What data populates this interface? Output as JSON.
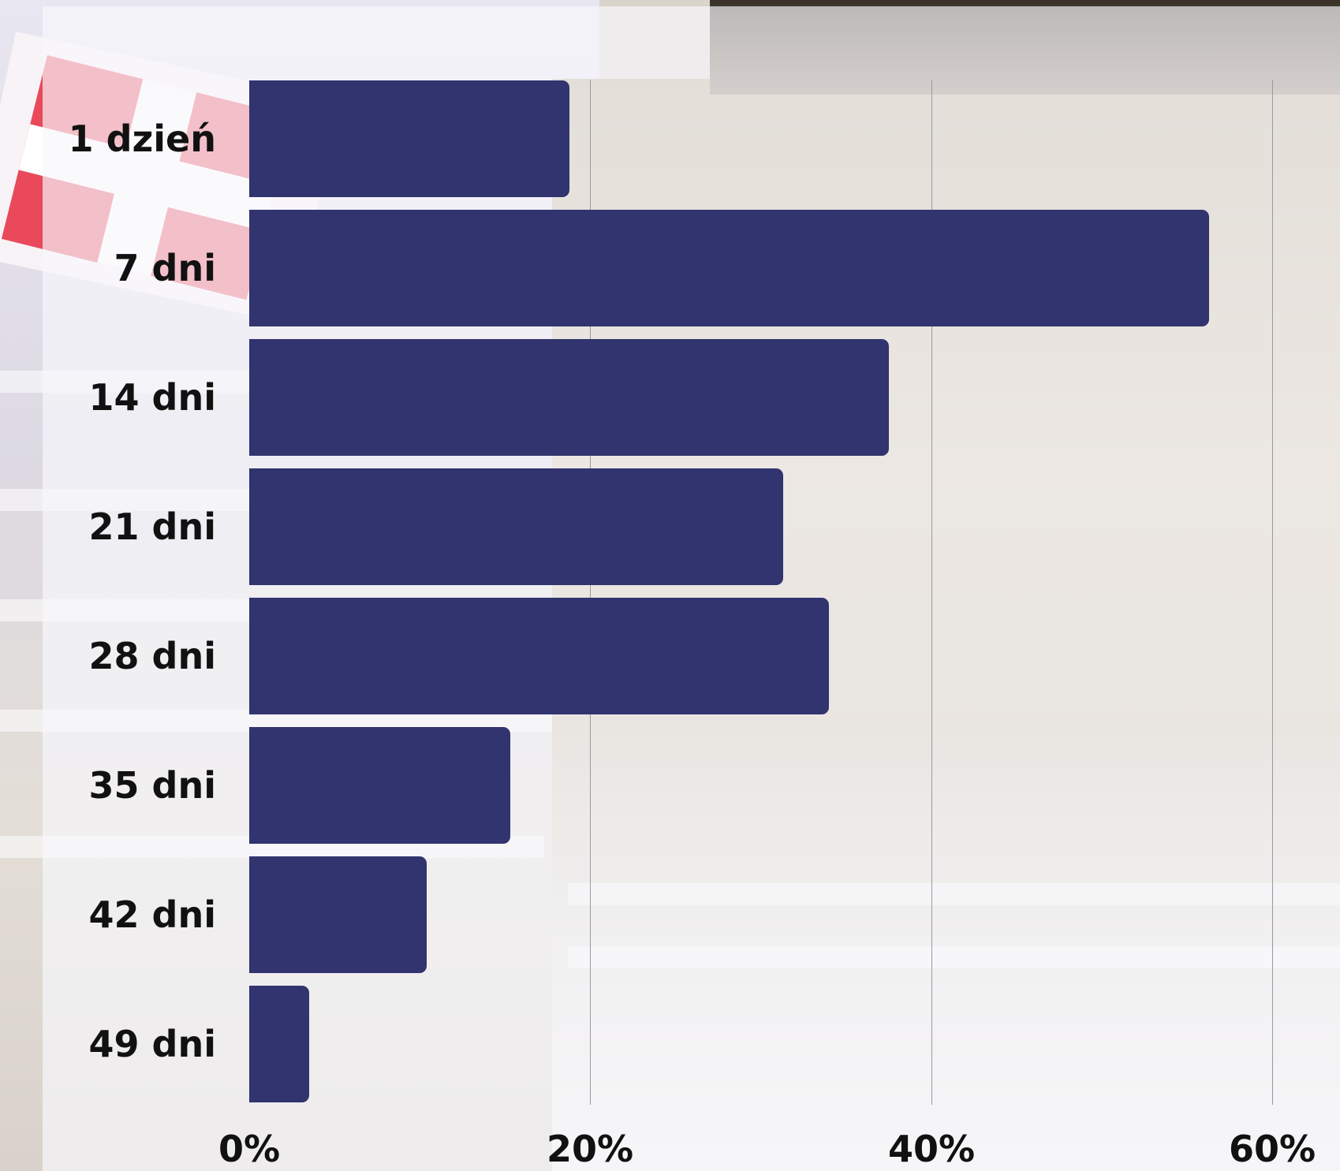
{
  "chart_data": {
    "type": "bar",
    "orientation": "horizontal",
    "categories": [
      "1 dzień",
      "7 dni",
      "14 dni",
      "21 dni",
      "28 dni",
      "35 dni",
      "42 dni",
      "49 dni"
    ],
    "values": [
      18.8,
      56.3,
      37.5,
      31.3,
      34.0,
      15.3,
      10.4,
      3.5
    ],
    "xlim": [
      0,
      60
    ],
    "xticks": [
      0,
      20,
      40,
      60
    ],
    "xtick_labels": [
      "0%",
      "20%",
      "40%",
      "60%"
    ],
    "grid": "vertical",
    "bar_color": "#31346e"
  }
}
